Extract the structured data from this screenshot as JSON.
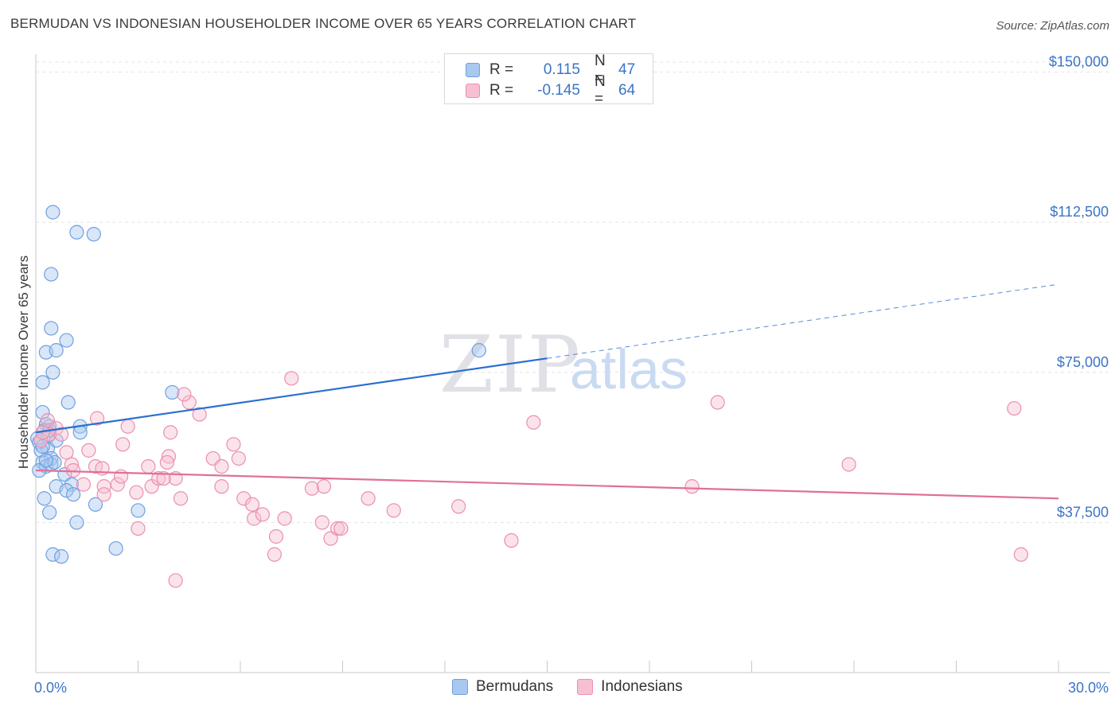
{
  "header": {
    "title": "BERMUDAN VS INDONESIAN HOUSEHOLDER INCOME OVER 65 YEARS CORRELATION CHART",
    "source": "Source: ZipAtlas.com"
  },
  "watermark": {
    "zip": "ZIP",
    "atlas": "atlas"
  },
  "legend": {
    "rows": [
      {
        "r_label": "R =",
        "r_value": "0.115",
        "n_label": "N =",
        "n_value": "47",
        "color": "#a9c8f0",
        "border": "#6fa0e0"
      },
      {
        "r_label": "R =",
        "r_value": "-0.145",
        "n_label": "N =",
        "n_value": "64",
        "color": "#f7c0d2",
        "border": "#ea8fae"
      }
    ]
  },
  "bottom_legend": {
    "items": [
      {
        "label": "Bermudans",
        "color": "#a9c8f0",
        "border": "#6fa0e0"
      },
      {
        "label": "Indonesians",
        "color": "#f7c0d2",
        "border": "#ea8fae"
      }
    ]
  },
  "chart_data": {
    "type": "scatter",
    "ylabel": "Householder Income Over 65 years",
    "xlim": [
      0,
      30
    ],
    "ylim": [
      0,
      152500
    ],
    "x_tick_labels": [
      {
        "value": 0,
        "label": "0.0%"
      },
      {
        "value": 30,
        "label": "30.0%"
      }
    ],
    "y_ticks": [
      {
        "value": 37500,
        "label": "$37,500"
      },
      {
        "value": 75000,
        "label": "$75,000"
      },
      {
        "value": 112500,
        "label": "$112,500"
      },
      {
        "value": 150000,
        "label": "$150,000"
      }
    ],
    "grid": true,
    "series": [
      {
        "name": "Bermudans",
        "color": "#6fa0e0",
        "fill": "#a9c8f0",
        "line_color": "#2a6fd0",
        "trend": {
          "x0": 0,
          "y0": 60000,
          "x1": 15,
          "y1": 78500,
          "x_end": 30,
          "y_end": 97000,
          "dashed_after": 15
        },
        "points": [
          [
            0.5,
            115000
          ],
          [
            1.2,
            110000
          ],
          [
            1.7,
            109500
          ],
          [
            0.45,
            99500
          ],
          [
            0.45,
            86000
          ],
          [
            0.9,
            83000
          ],
          [
            0.3,
            80000
          ],
          [
            0.6,
            80500
          ],
          [
            0.5,
            75000
          ],
          [
            0.2,
            72500
          ],
          [
            0.95,
            67500
          ],
          [
            0.2,
            65000
          ],
          [
            0.3,
            62000
          ],
          [
            0.4,
            61500
          ],
          [
            0.25,
            60500
          ],
          [
            0.05,
            58500
          ],
          [
            0.1,
            57500
          ],
          [
            0.35,
            56000
          ],
          [
            0.45,
            53500
          ],
          [
            0.2,
            52500
          ],
          [
            0.3,
            51500
          ],
          [
            0.45,
            52000
          ],
          [
            0.55,
            52500
          ],
          [
            0.1,
            50500
          ],
          [
            0.85,
            49500
          ],
          [
            0.6,
            46500
          ],
          [
            1.05,
            47000
          ],
          [
            0.9,
            45500
          ],
          [
            1.1,
            44500
          ],
          [
            0.25,
            43500
          ],
          [
            1.75,
            42000
          ],
          [
            0.4,
            40000
          ],
          [
            3.0,
            40500
          ],
          [
            1.2,
            37500
          ],
          [
            2.35,
            31000
          ],
          [
            0.5,
            29500
          ],
          [
            0.75,
            29000
          ],
          [
            4.0,
            70000
          ],
          [
            13.0,
            80500
          ],
          [
            1.3,
            61500
          ],
          [
            1.3,
            60000
          ],
          [
            0.15,
            55500
          ],
          [
            0.35,
            59000
          ],
          [
            0.6,
            58000
          ],
          [
            0.3,
            53000
          ],
          [
            0.2,
            56500
          ],
          [
            0.4,
            60500
          ]
        ]
      },
      {
        "name": "Indonesians",
        "color": "#ea8fae",
        "fill": "#f7c0d2",
        "line_color": "#e0709a",
        "trend": {
          "x0": 0,
          "y0": 50500,
          "x1": 30,
          "y1": 43500,
          "x_end": 30,
          "y_end": 43500,
          "dashed_after": 30
        },
        "points": [
          [
            0.35,
            63000
          ],
          [
            0.6,
            61000
          ],
          [
            0.4,
            59500
          ],
          [
            0.15,
            58000
          ],
          [
            1.8,
            63500
          ],
          [
            2.7,
            61500
          ],
          [
            0.9,
            55000
          ],
          [
            1.55,
            55500
          ],
          [
            2.55,
            57000
          ],
          [
            1.05,
            52000
          ],
          [
            1.75,
            51500
          ],
          [
            1.4,
            47000
          ],
          [
            2.0,
            46500
          ],
          [
            2.4,
            47000
          ],
          [
            2.0,
            44500
          ],
          [
            2.5,
            49000
          ],
          [
            3.3,
            51500
          ],
          [
            3.4,
            46500
          ],
          [
            3.6,
            48500
          ],
          [
            3.9,
            54000
          ],
          [
            3.85,
            52500
          ],
          [
            4.1,
            48500
          ],
          [
            4.25,
            43500
          ],
          [
            4.5,
            67500
          ],
          [
            4.8,
            64500
          ],
          [
            4.35,
            69500
          ],
          [
            5.2,
            53500
          ],
          [
            5.45,
            51500
          ],
          [
            5.45,
            46500
          ],
          [
            5.8,
            57000
          ],
          [
            5.95,
            53500
          ],
          [
            6.1,
            43500
          ],
          [
            6.35,
            42000
          ],
          [
            6.4,
            38500
          ],
          [
            6.65,
            39500
          ],
          [
            7.05,
            34000
          ],
          [
            7.3,
            38500
          ],
          [
            7.5,
            73500
          ],
          [
            8.1,
            46000
          ],
          [
            8.45,
            46500
          ],
          [
            8.4,
            37500
          ],
          [
            8.65,
            33500
          ],
          [
            8.85,
            36000
          ],
          [
            8.95,
            36000
          ],
          [
            9.75,
            43500
          ],
          [
            10.5,
            40500
          ],
          [
            12.4,
            41500
          ],
          [
            13.95,
            33000
          ],
          [
            14.6,
            62500
          ],
          [
            19.25,
            46500
          ],
          [
            20.0,
            67500
          ],
          [
            23.85,
            52000
          ],
          [
            28.7,
            66000
          ],
          [
            28.9,
            29500
          ],
          [
            7.0,
            29500
          ],
          [
            3.0,
            36000
          ],
          [
            4.1,
            23000
          ],
          [
            2.95,
            45000
          ],
          [
            3.75,
            48500
          ],
          [
            1.1,
            50500
          ],
          [
            0.75,
            59500
          ],
          [
            0.2,
            60000
          ],
          [
            1.95,
            51000
          ],
          [
            3.95,
            60000
          ]
        ]
      }
    ]
  }
}
